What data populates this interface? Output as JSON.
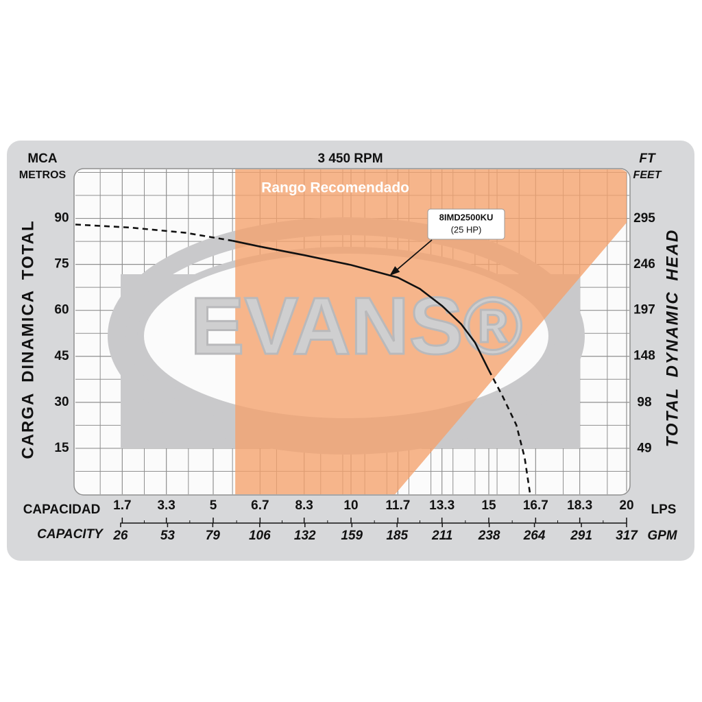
{
  "chart_data": {
    "type": "line",
    "title": "3 450 RPM",
    "y_unit_top": "MCA",
    "y_unit": "METROS",
    "y2_unit_top": "FT",
    "y2_unit": "FEET",
    "ylabel": "CARGA DINAMICA TOTAL",
    "y2label": "TOTAL DYNAMIC HEAD",
    "xlabel": "CAPACIDAD",
    "x_unit": "LPS",
    "x2label": "CAPACITY",
    "x2_unit": "GPM",
    "watermark": "EVANS®",
    "xlim": [
      0,
      20
    ],
    "xticks": [
      1.7,
      3.3,
      5,
      6.7,
      8.3,
      10,
      11.7,
      13.3,
      15,
      16.7,
      18.3,
      20
    ],
    "x2lim": [
      0,
      317
    ],
    "x2ticks": [
      26,
      53,
      79,
      106,
      132,
      159,
      185,
      211,
      238,
      264,
      291,
      317
    ],
    "ylim": [
      0,
      106
    ],
    "yticks": [
      15,
      30,
      45,
      60,
      75,
      90
    ],
    "y2lim": [
      0,
      348
    ],
    "y2ticks": [
      49,
      98,
      148,
      197,
      246,
      295
    ],
    "grid": true,
    "region": {
      "label": "Rango Recomendado",
      "color": "#f5a16b",
      "x": [
        5.8,
        5.8,
        20,
        20,
        11.6
      ],
      "values": [
        0,
        106,
        106,
        88.6,
        0
      ]
    },
    "series": [
      {
        "color": "#111111",
        "dashed": true,
        "x": [
          0,
          2,
          4,
          5.7
        ],
        "values": [
          88,
          87,
          85.3,
          82.7
        ]
      },
      {
        "color": "#111111",
        "dashed": false,
        "x": [
          5.7,
          6.7,
          8.3,
          10,
          11.7,
          12.5,
          13.3,
          14,
          14.5,
          15
        ],
        "values": [
          82.7,
          80.8,
          78,
          74.8,
          70.7,
          67,
          61.5,
          55.5,
          49.5,
          40.5
        ]
      },
      {
        "color": "#111111",
        "dashed": true,
        "x": [
          15,
          15.5,
          16,
          16.3,
          16.5
        ],
        "values": [
          40.5,
          32,
          22.6,
          12,
          0
        ]
      }
    ],
    "annotation": {
      "title": "8IMD2500KU",
      "text": "(25 HP)",
      "x": 11.4,
      "y": 71.3
    }
  }
}
